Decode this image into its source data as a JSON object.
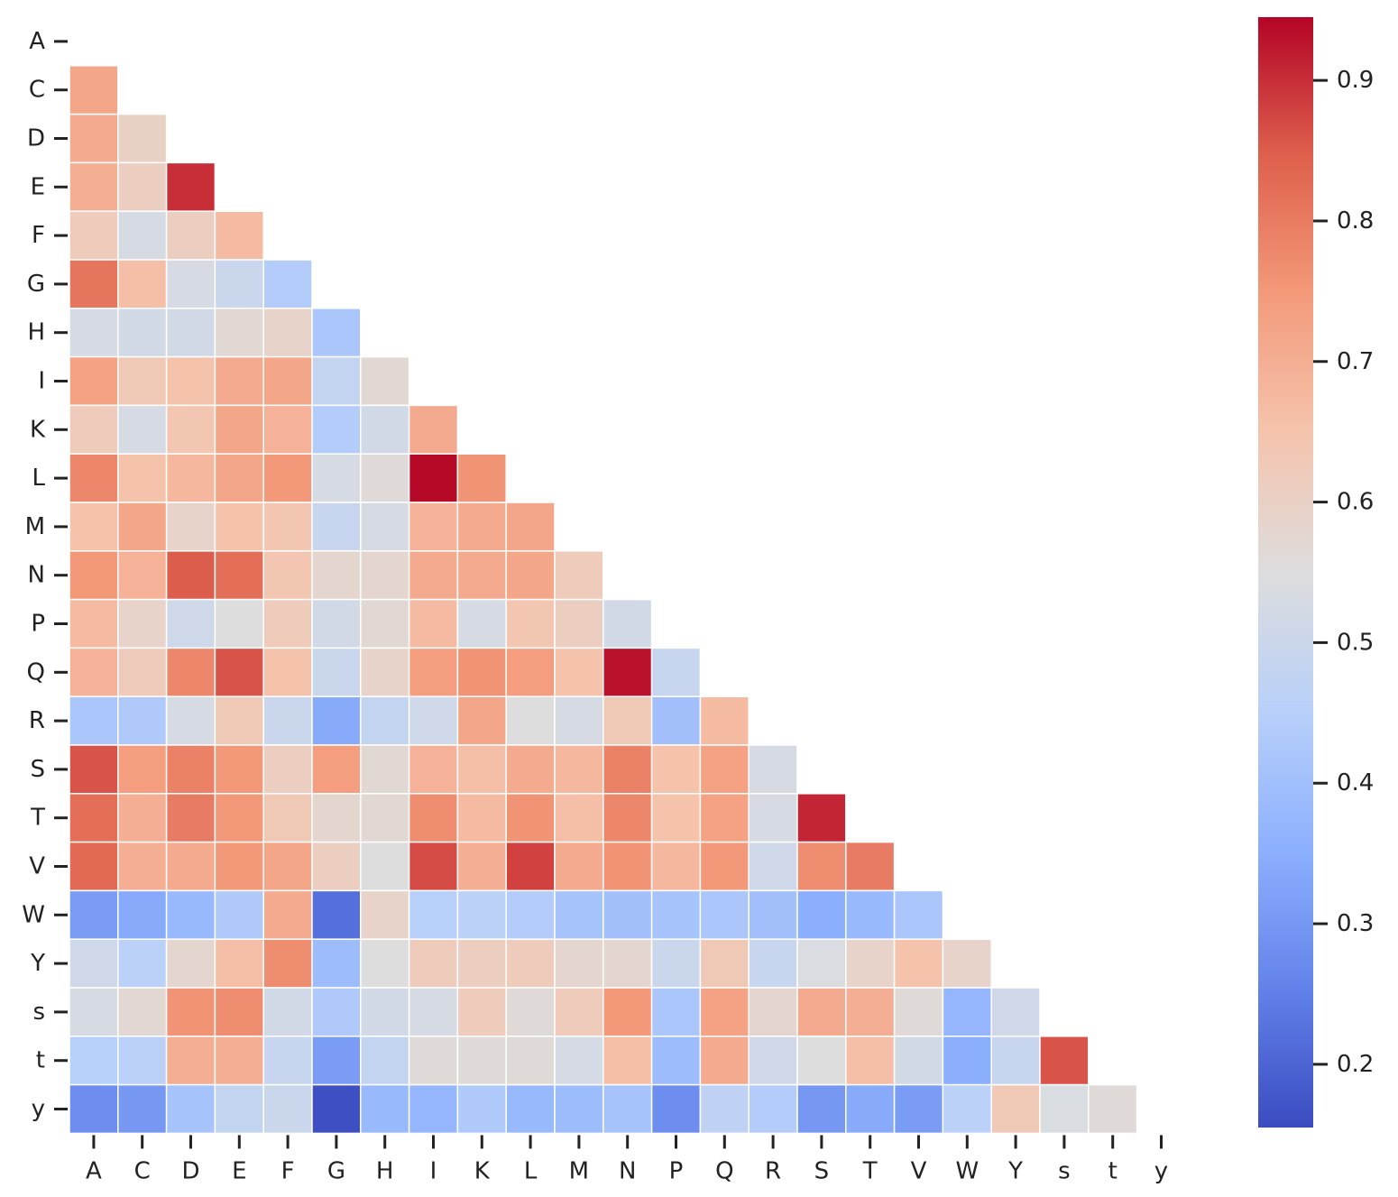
{
  "chart_data": {
    "type": "heatmap",
    "title": "",
    "xlabel": "",
    "ylabel": "",
    "mask": "lower-triangle",
    "labels": [
      "A",
      "C",
      "D",
      "E",
      "F",
      "G",
      "H",
      "I",
      "K",
      "L",
      "M",
      "N",
      "P",
      "Q",
      "R",
      "S",
      "T",
      "V",
      "W",
      "Y",
      "s",
      "t",
      "y"
    ],
    "values": [
      [],
      [
        0.72
      ],
      [
        0.71,
        0.6
      ],
      [
        0.7,
        0.61,
        0.9
      ],
      [
        0.62,
        0.53,
        0.61,
        0.67
      ],
      [
        0.81,
        0.66,
        0.53,
        0.5,
        0.44
      ],
      [
        0.53,
        0.52,
        0.52,
        0.57,
        0.59,
        0.42
      ],
      [
        0.73,
        0.63,
        0.65,
        0.71,
        0.72,
        0.48,
        0.57
      ],
      [
        0.62,
        0.53,
        0.64,
        0.72,
        0.69,
        0.44,
        0.52,
        0.71
      ],
      [
        0.78,
        0.65,
        0.68,
        0.72,
        0.75,
        0.53,
        0.56,
        0.94,
        0.76
      ],
      [
        0.65,
        0.72,
        0.59,
        0.65,
        0.64,
        0.49,
        0.53,
        0.69,
        0.71,
        0.72
      ],
      [
        0.75,
        0.69,
        0.85,
        0.82,
        0.64,
        0.58,
        0.58,
        0.71,
        0.71,
        0.72,
        0.62
      ],
      [
        0.67,
        0.59,
        0.51,
        0.55,
        0.62,
        0.52,
        0.57,
        0.67,
        0.53,
        0.64,
        0.61,
        0.52
      ],
      [
        0.69,
        0.62,
        0.78,
        0.86,
        0.65,
        0.5,
        0.59,
        0.74,
        0.76,
        0.74,
        0.65,
        0.93,
        0.49
      ],
      [
        0.42,
        0.43,
        0.53,
        0.63,
        0.5,
        0.34,
        0.48,
        0.51,
        0.72,
        0.55,
        0.53,
        0.63,
        0.4,
        0.67
      ],
      [
        0.86,
        0.74,
        0.79,
        0.75,
        0.61,
        0.74,
        0.57,
        0.69,
        0.66,
        0.71,
        0.68,
        0.79,
        0.65,
        0.73,
        0.53
      ],
      [
        0.82,
        0.7,
        0.8,
        0.75,
        0.63,
        0.58,
        0.57,
        0.77,
        0.67,
        0.76,
        0.66,
        0.78,
        0.65,
        0.73,
        0.53,
        0.91
      ],
      [
        0.83,
        0.7,
        0.71,
        0.75,
        0.72,
        0.61,
        0.55,
        0.87,
        0.7,
        0.88,
        0.71,
        0.76,
        0.68,
        0.75,
        0.51,
        0.77,
        0.8
      ],
      [
        0.31,
        0.34,
        0.38,
        0.43,
        0.71,
        0.22,
        0.59,
        0.45,
        0.46,
        0.44,
        0.41,
        0.4,
        0.41,
        0.42,
        0.4,
        0.35,
        0.38,
        0.42
      ],
      [
        0.51,
        0.46,
        0.58,
        0.66,
        0.77,
        0.39,
        0.55,
        0.62,
        0.61,
        0.62,
        0.58,
        0.58,
        0.5,
        0.63,
        0.49,
        0.54,
        0.59,
        0.65,
        0.59
      ],
      [
        0.53,
        0.57,
        0.76,
        0.77,
        0.52,
        0.43,
        0.52,
        0.53,
        0.62,
        0.56,
        0.62,
        0.75,
        0.42,
        0.73,
        0.58,
        0.71,
        0.7,
        0.56,
        0.37,
        0.51
      ],
      [
        0.45,
        0.46,
        0.7,
        0.7,
        0.49,
        0.31,
        0.48,
        0.56,
        0.56,
        0.56,
        0.53,
        0.66,
        0.39,
        0.71,
        0.51,
        0.55,
        0.66,
        0.52,
        0.35,
        0.49,
        0.86
      ],
      [
        0.28,
        0.3,
        0.41,
        0.48,
        0.5,
        0.16,
        0.38,
        0.37,
        0.43,
        0.38,
        0.39,
        0.41,
        0.28,
        0.47,
        0.44,
        0.3,
        0.34,
        0.31,
        0.46,
        0.63,
        0.54,
        0.56
      ]
    ],
    "colormap": "coolwarm",
    "vmin": 0.155,
    "vmax": 0.945,
    "colorbar": {
      "ticks": [
        0.2,
        0.3,
        0.4,
        0.5,
        0.6,
        0.7,
        0.8,
        0.9
      ],
      "tick_labels": [
        "0.2",
        "0.3",
        "0.4",
        "0.5",
        "0.6",
        "0.7",
        "0.8",
        "0.9"
      ],
      "placement": "right"
    }
  }
}
